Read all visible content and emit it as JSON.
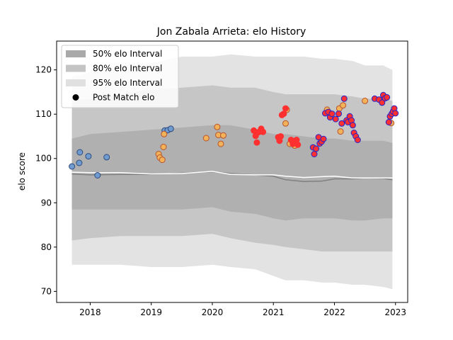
{
  "chart_data": {
    "type": "scatter",
    "title": "Jon Zabala Arrieta: elo History",
    "xlabel": "",
    "ylabel": "elo score",
    "xlim": [
      2017.45,
      2023.2
    ],
    "ylim": [
      67.5,
      126.5
    ],
    "xticks": [
      2018,
      2019,
      2020,
      2021,
      2022,
      2023
    ],
    "xtick_labels": [
      "2018",
      "2019",
      "2020",
      "2021",
      "2022",
      "2023"
    ],
    "yticks": [
      70,
      80,
      90,
      100,
      110,
      120
    ],
    "ytick_labels": [
      "70",
      "80",
      "90",
      "100",
      "110",
      "120"
    ],
    "legend": {
      "position": "top-left",
      "entries": [
        {
          "label": "50% elo Interval",
          "kind": "band",
          "color": "#a9a9a9"
        },
        {
          "label": "80% elo Interval",
          "kind": "band",
          "color": "#c4c4c4"
        },
        {
          "label": "95% elo Interval",
          "kind": "band",
          "color": "#e0e0e0"
        },
        {
          "label": "Post Match elo",
          "kind": "marker",
          "color": "#000000"
        }
      ]
    },
    "colors": {
      "band95": "#e3e3e3",
      "band80": "#c6c6c6",
      "band50": "#b0b0b0",
      "mean_line": "#ffffff",
      "median_line": "#808080"
    },
    "intervals": {
      "x": [
        2017.7,
        2018.0,
        2018.5,
        2019.0,
        2019.5,
        2020.0,
        2020.3,
        2020.7,
        2021.0,
        2021.2,
        2021.5,
        2021.8,
        2022.0,
        2022.3,
        2022.5,
        2022.8,
        2022.95
      ],
      "lo95": [
        76.0,
        76.0,
        76.0,
        75.5,
        75.5,
        76.0,
        75.5,
        75.0,
        73.5,
        72.5,
        72.5,
        72.0,
        72.0,
        71.5,
        71.5,
        71.0,
        70.5
      ],
      "hi95": [
        118.5,
        119.5,
        121.0,
        121.5,
        123.0,
        123.0,
        123.5,
        123.0,
        123.0,
        123.0,
        123.0,
        122.5,
        122.5,
        122.0,
        121.0,
        121.0,
        120.0
      ],
      "lo80": [
        81.5,
        82.0,
        82.5,
        82.5,
        82.5,
        83.0,
        82.0,
        81.0,
        80.5,
        80.0,
        79.5,
        79.0,
        79.0,
        79.0,
        79.0,
        79.0,
        79.0
      ],
      "hi80": [
        113.0,
        113.5,
        114.5,
        115.5,
        116.0,
        116.5,
        116.0,
        116.0,
        115.0,
        114.5,
        114.5,
        114.5,
        114.5,
        114.0,
        113.5,
        113.5,
        113.0
      ],
      "lo50": [
        88.5,
        88.5,
        88.5,
        88.5,
        88.5,
        89.0,
        88.0,
        87.5,
        86.5,
        86.0,
        86.5,
        86.5,
        86.5,
        86.0,
        86.0,
        86.5,
        86.5
      ],
      "hi50": [
        104.5,
        105.5,
        106.0,
        106.5,
        107.0,
        107.5,
        107.5,
        106.5,
        105.5,
        105.5,
        105.0,
        104.5,
        104.5,
        104.0,
        104.0,
        104.0,
        103.5
      ],
      "mean": [
        96.9,
        96.8,
        96.8,
        96.5,
        96.6,
        97.1,
        96.4,
        96.3,
        96.3,
        96.0,
        95.7,
        95.9,
        96.0,
        95.6,
        95.6,
        95.6,
        95.6
      ],
      "median": [
        96.5,
        96.3,
        96.4,
        96.4,
        96.7,
        97.0,
        96.6,
        96.3,
        96.0,
        95.2,
        94.8,
        94.9,
        95.4,
        95.4,
        95.6,
        95.5,
        95.2
      ]
    },
    "series": [
      {
        "face": "#6f9bd1",
        "edge": "#2e4a7a",
        "points": [
          [
            2017.7,
            98.2
          ],
          [
            2017.82,
            99.0
          ],
          [
            2017.83,
            101.4
          ],
          [
            2017.97,
            100.5
          ],
          [
            2018.12,
            96.2
          ],
          [
            2018.27,
            100.3
          ],
          [
            2019.22,
            106.3
          ],
          [
            2019.27,
            106.4
          ],
          [
            2019.32,
            106.7
          ]
        ]
      },
      {
        "face": "#f2b25a",
        "edge": "#b8532c",
        "points": [
          [
            2019.12,
            101.0
          ],
          [
            2019.14,
            100.2
          ],
          [
            2019.18,
            99.7
          ],
          [
            2019.2,
            102.6
          ],
          [
            2019.21,
            105.5
          ],
          [
            2019.9,
            104.6
          ],
          [
            2020.08,
            107.1
          ],
          [
            2020.1,
            105.3
          ],
          [
            2020.14,
            103.3
          ],
          [
            2020.18,
            105.2
          ],
          [
            2021.2,
            107.9
          ],
          [
            2021.22,
            111.0
          ],
          [
            2021.27,
            103.3
          ],
          [
            2021.35,
            102.9
          ],
          [
            2021.88,
            111.0
          ],
          [
            2022.08,
            111.3
          ],
          [
            2022.1,
            106.1
          ],
          [
            2022.14,
            112.0
          ],
          [
            2022.5,
            113.0
          ],
          [
            2022.93,
            108.0
          ]
        ]
      },
      {
        "face": "#ff3030",
        "edge": "#ff3030",
        "points": [
          [
            2020.68,
            106.3
          ],
          [
            2020.71,
            105.1
          ],
          [
            2020.73,
            103.6
          ],
          [
            2020.75,
            105.9
          ],
          [
            2020.78,
            106.1
          ],
          [
            2020.8,
            106.7
          ],
          [
            2020.83,
            106.0
          ],
          [
            2021.08,
            104.8
          ],
          [
            2021.1,
            104.0
          ],
          [
            2021.12,
            105.0
          ],
          [
            2021.14,
            109.8
          ],
          [
            2021.17,
            110.1
          ],
          [
            2021.2,
            111.3
          ],
          [
            2021.29,
            104.2
          ],
          [
            2021.32,
            103.3
          ],
          [
            2021.36,
            104.0
          ],
          [
            2021.38,
            104.2
          ],
          [
            2021.4,
            103.1
          ]
        ]
      },
      {
        "face": "#ff3030",
        "edge": "#2222cc",
        "points": [
          [
            2021.65,
            102.5
          ],
          [
            2021.67,
            101.0
          ],
          [
            2021.7,
            102.2
          ],
          [
            2021.74,
            104.8
          ],
          [
            2021.76,
            103.4
          ],
          [
            2021.79,
            103.8
          ],
          [
            2021.82,
            104.4
          ],
          [
            2021.85,
            110.2
          ],
          [
            2021.9,
            110.5
          ],
          [
            2021.93,
            109.3
          ],
          [
            2021.96,
            110.1
          ],
          [
            2022.02,
            108.9
          ],
          [
            2022.07,
            110.1
          ],
          [
            2022.12,
            107.9
          ],
          [
            2022.16,
            113.5
          ],
          [
            2022.2,
            108.6
          ],
          [
            2022.22,
            108.2
          ],
          [
            2022.25,
            109.5
          ],
          [
            2022.28,
            108.6
          ],
          [
            2022.3,
            107.5
          ],
          [
            2022.32,
            105.8
          ],
          [
            2022.35,
            105.0
          ],
          [
            2022.38,
            104.2
          ],
          [
            2022.66,
            113.5
          ],
          [
            2022.73,
            113.3
          ],
          [
            2022.78,
            112.6
          ],
          [
            2022.8,
            114.3
          ],
          [
            2022.83,
            113.6
          ],
          [
            2022.86,
            113.8
          ],
          [
            2022.89,
            108.2
          ],
          [
            2022.91,
            109.5
          ],
          [
            2022.94,
            110.1
          ],
          [
            2022.96,
            110.6
          ],
          [
            2022.98,
            111.3
          ],
          [
            2023.0,
            110.2
          ]
        ]
      }
    ]
  }
}
